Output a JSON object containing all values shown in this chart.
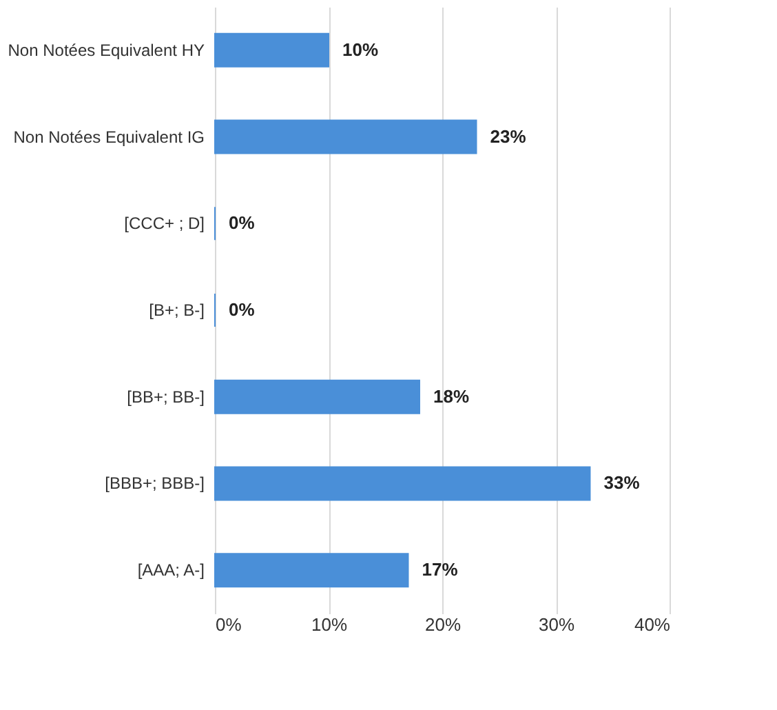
{
  "chart_data": {
    "type": "bar",
    "orientation": "horizontal",
    "categories": [
      "Non Notées Equivalent HY",
      "Non Notées Equivalent IG",
      "[CCC+ ; D]",
      "[B+; B-]",
      "[BB+; BB-]",
      "[BBB+; BBB-]",
      "[AAA; A-]"
    ],
    "values": [
      10,
      23,
      0,
      0,
      18,
      33,
      17
    ],
    "value_labels": [
      "10%",
      "23%",
      "0%",
      "0%",
      "18%",
      "33%",
      "17%"
    ],
    "color": "#4a8fd8",
    "xlim": [
      0,
      40
    ],
    "xticks": [
      {
        "value": 0,
        "label": "0%"
      },
      {
        "value": 10,
        "label": "10%"
      },
      {
        "value": 20,
        "label": "20%"
      },
      {
        "value": 30,
        "label": "30%"
      },
      {
        "value": 40,
        "label": "40%"
      }
    ],
    "grid": "x"
  }
}
